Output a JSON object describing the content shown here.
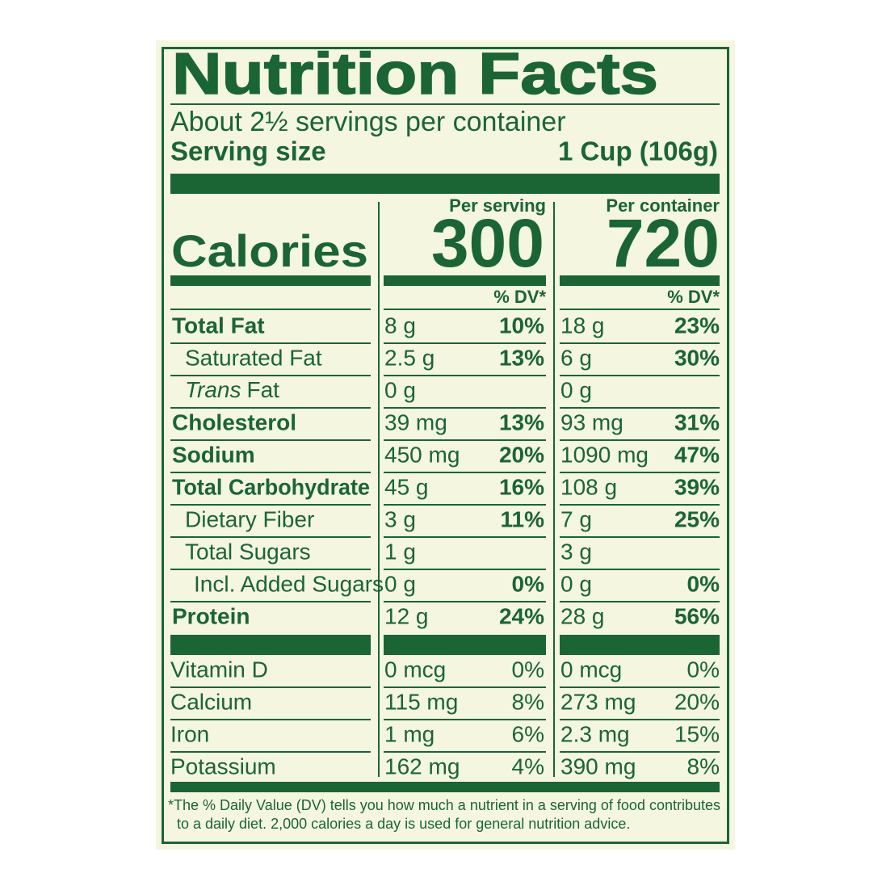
{
  "header": {
    "title": "Nutrition Facts",
    "servings": "About 2½ servings per container",
    "serving_size_label": "Serving size",
    "serving_size_value": "1 Cup (106g)"
  },
  "columns": {
    "per_serving": "Per serving",
    "per_container": "Per container",
    "calories_label": "Calories",
    "calories_serving": 300,
    "calories_container": 720,
    "dv_header": "% DV*"
  },
  "rows": [
    {
      "label": "Total Fat",
      "serving_amount": "8 g",
      "serving_dv": "10%",
      "container_amount": "18 g",
      "container_dv": "23%"
    },
    {
      "label": "Saturated Fat",
      "serving_amount": "2.5 g",
      "serving_dv": "13%",
      "container_amount": "6 g",
      "container_dv": "30%"
    },
    {
      "label_prefix": "Trans",
      "label": "Fat",
      "serving_amount": "0 g",
      "serving_dv": null,
      "container_amount": "0 g",
      "container_dv": null
    },
    {
      "label": "Cholesterol",
      "serving_amount": "39 mg",
      "serving_dv": "13%",
      "container_amount": "93 mg",
      "container_dv": "31%"
    },
    {
      "label": "Sodium",
      "serving_amount": "450 mg",
      "serving_dv": "20%",
      "container_amount": "1090 mg",
      "container_dv": "47%"
    },
    {
      "label": "Total Carbohydrate",
      "serving_amount": "45 g",
      "serving_dv": "16%",
      "container_amount": "108 g",
      "container_dv": "39%"
    },
    {
      "label": "Dietary Fiber",
      "serving_amount": "3 g",
      "serving_dv": "11%",
      "container_amount": "7 g",
      "container_dv": "25%"
    },
    {
      "label": "Total Sugars",
      "serving_amount": "1 g",
      "serving_dv": null,
      "container_amount": "3 g",
      "container_dv": null
    },
    {
      "label": "Incl. Added Sugars",
      "serving_amount": "0 g",
      "serving_dv": "0%",
      "container_amount": "0 g",
      "container_dv": "0%"
    },
    {
      "label": "Protein",
      "serving_amount": "12 g",
      "serving_dv": "24%",
      "container_amount": "28 g",
      "container_dv": "56%"
    }
  ],
  "vitamins": [
    {
      "label": "Vitamin D",
      "serving_amount": "0 mcg",
      "serving_dv": "0%",
      "container_amount": "0 mcg",
      "container_dv": "0%"
    },
    {
      "label": "Calcium",
      "serving_amount": "115 mg",
      "serving_dv": "8%",
      "container_amount": "273 mg",
      "container_dv": "20%"
    },
    {
      "label": "Iron",
      "serving_amount": "1 mg",
      "serving_dv": "6%",
      "container_amount": "2.3 mg",
      "container_dv": "15%"
    },
    {
      "label": "Potassium",
      "serving_amount": "162 mg",
      "serving_dv": "4%",
      "container_amount": "390 mg",
      "container_dv": "8%"
    }
  ],
  "footnote": [
    "*The % Daily Value (DV) tells you how much a nutrient in a serving of food contributes",
    "to a daily diet. 2,000 calories a day is used for general nutrition advice."
  ]
}
